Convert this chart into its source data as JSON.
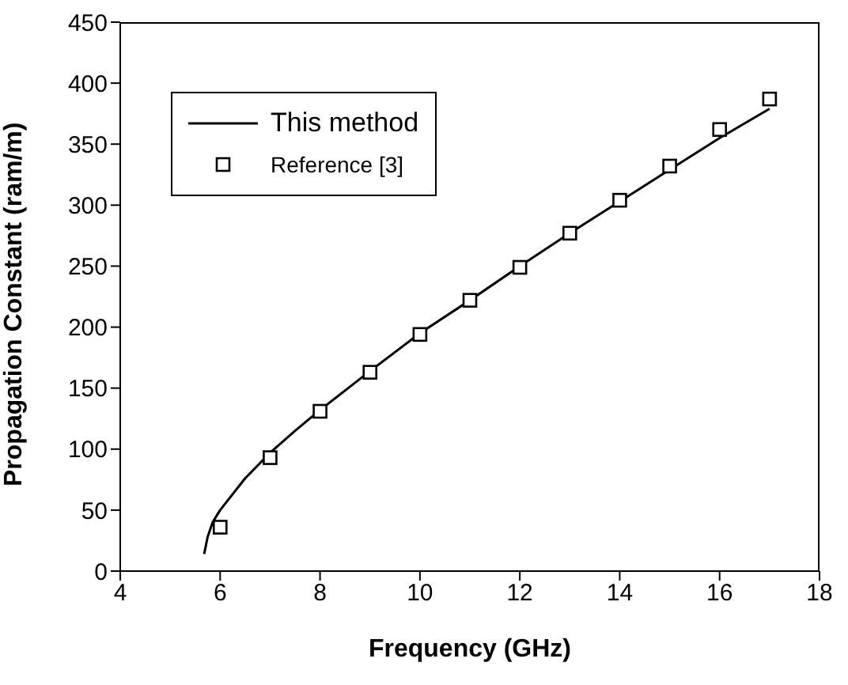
{
  "chart_data": {
    "type": "line",
    "xlabel": "Frequency (GHz)",
    "ylabel": "Propagation Constant (ram/m)",
    "xlim": [
      4,
      18
    ],
    "xticks": [
      4,
      6,
      8,
      10,
      12,
      14,
      16,
      18
    ],
    "ylim": [
      0,
      450
    ],
    "yticks": [
      0,
      50,
      100,
      150,
      200,
      250,
      300,
      350,
      400,
      450
    ],
    "grid": false,
    "legend": "top left",
    "series": [
      {
        "name": "This method",
        "color": "#000000",
        "marker": "none",
        "line_style": "solid",
        "x": [
          5.68,
          5.75,
          5.85,
          6.0,
          6.5,
          7,
          7.5,
          8,
          9,
          10,
          11,
          12,
          13,
          14,
          15,
          16,
          17
        ],
        "values": [
          14,
          28,
          40,
          50,
          76,
          97,
          115,
          132,
          164,
          195,
          222,
          250,
          277,
          303,
          329,
          355,
          379
        ]
      },
      {
        "name": "Reference [3]",
        "type": "scatter",
        "color": "#000000",
        "marker": "square",
        "x": [
          6,
          7,
          8,
          9,
          10,
          11,
          12,
          13,
          14,
          15,
          16,
          17
        ],
        "values": [
          36,
          93,
          131,
          163,
          194,
          222,
          249,
          277,
          304,
          332,
          362,
          387
        ]
      }
    ]
  }
}
